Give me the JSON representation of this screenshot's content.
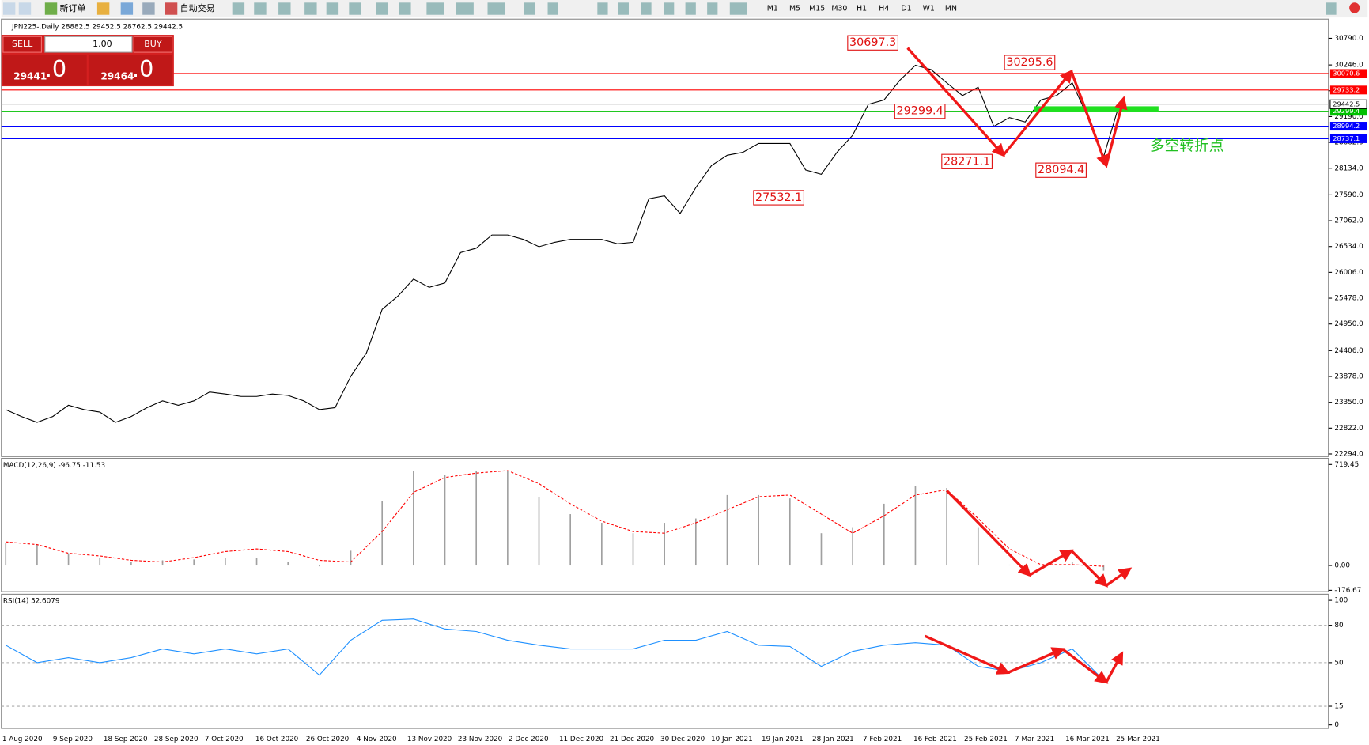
{
  "toolbar": {
    "new_order": "新订单",
    "auto_trading": "自动交易",
    "timeframes": [
      "M1",
      "M5",
      "M15",
      "M30",
      "H1",
      "H4",
      "D1",
      "W1",
      "MN"
    ]
  },
  "trade_panel": {
    "sell": "SELL",
    "buy": "BUY",
    "volume": "1.00",
    "sell_price": "29441",
    "sell_price_big": ".0",
    "buy_price": "29464",
    "buy_price_big": ".0"
  },
  "xtick_labels": [
    "1 Aug 2020",
    "9 Sep 2020",
    "18 Sep 2020",
    "28 Sep 2020",
    "7 Oct 2020",
    "16 Oct 2020",
    "26 Oct 2020",
    "4 Nov 2020",
    "13 Nov 2020",
    "23 Nov 2020",
    "2 Dec 2020",
    "11 Dec 2020",
    "21 Dec 2020",
    "30 Dec 2020",
    "10 Jan 2021",
    "19 Jan 2021",
    "28 Jan 2021",
    "7 Feb 2021",
    "16 Feb 2021",
    "25 Feb 2021",
    "7 Mar 2021",
    "16 Mar 2021",
    "25 Mar 2021"
  ],
  "chart_data": [
    {
      "type": "line",
      "title": "JPN225-,Daily  28882.5 29452.5 28762.5 29442.5",
      "color": "#000000",
      "values": [
        23200,
        23060,
        22940,
        23060,
        23290,
        23200,
        23150,
        22940,
        23060,
        23240,
        23380,
        23290,
        23380,
        23560,
        23520,
        23470,
        23470,
        23520,
        23490,
        23380,
        23200,
        23240,
        23880,
        24360,
        25250,
        25520,
        25870,
        25700,
        25790,
        26410,
        26500,
        26770,
        26770,
        26680,
        26530,
        26620,
        26680,
        26680,
        26680,
        26590,
        26620,
        27510,
        27570,
        27210,
        27740,
        28190,
        28400,
        28460,
        28640,
        28640,
        28640,
        28100,
        28010,
        28460,
        28810,
        29440,
        29530,
        29930,
        30240,
        30150,
        29880,
        29620,
        29790,
        28990,
        29170,
        29080,
        29530,
        29620,
        29880,
        29170,
        28370,
        29440
      ],
      "ylim": [
        22258,
        31146
      ],
      "yticks": [
        {
          "value": 30790,
          "label": "30790.0"
        },
        {
          "value": 30246,
          "label": "30246.0"
        },
        {
          "value": 29718,
          "label": "29718.0"
        },
        {
          "value": 29190,
          "label": "29190.0"
        },
        {
          "value": 28662,
          "label": "28662.0"
        },
        {
          "value": 28134,
          "label": "28134.0"
        },
        {
          "value": 27590,
          "label": "27590.0"
        },
        {
          "value": 27062,
          "label": "27062.0"
        },
        {
          "value": 26534,
          "label": "26534.0"
        },
        {
          "value": 26006,
          "label": "26006.0"
        },
        {
          "value": 25478,
          "label": "25478.0"
        },
        {
          "value": 24950,
          "label": "24950.0"
        },
        {
          "value": 24406,
          "label": "24406.0"
        },
        {
          "value": 23878,
          "label": "23878.0"
        },
        {
          "value": 23350,
          "label": "23350.0"
        },
        {
          "value": 22822,
          "label": "22822.0"
        },
        {
          "value": 22294,
          "label": "22294.0"
        }
      ],
      "levels": [
        {
          "value": 30070.6,
          "color": "#ff0000"
        },
        {
          "value": 29733.2,
          "color": "#ff0000"
        },
        {
          "value": 29299.4,
          "color": "#00c000"
        },
        {
          "value": 28994.2,
          "color": "#0000ff"
        },
        {
          "value": 28737.1,
          "color": "#0000ff"
        }
      ],
      "bid": 29442.5,
      "annotations": [
        {
          "value": 30697.3,
          "index": 57
        },
        {
          "value": 30295.6,
          "index": 67
        },
        {
          "value": 29299.4,
          "index": 60
        },
        {
          "value": 28271.1,
          "index": 63
        },
        {
          "value": 28094.4,
          "index": 69
        },
        {
          "value": 27532.1,
          "index": 51
        }
      ],
      "note": "多空转折点"
    },
    {
      "type": "bar",
      "title": "MACD(12,26,9) -96.75 -11.53",
      "ylim": [
        -180,
        757
      ],
      "yticks": [
        719.45,
        {
          "value": 0,
          "label": "0.00"
        },
        -176.67
      ],
      "series": [
        {
          "color": "#a0a0a0",
          "values": [
            161,
            149,
            87,
            56,
            25,
            37,
            43,
            56,
            56,
            25,
            -6,
            105,
            459,
            676,
            645,
            676,
            676,
            490,
            366,
            304,
            230,
            304,
            335,
            502,
            502,
            478,
            230,
            273,
            440,
            565,
            552,
            273,
            6,
            6,
            25,
            -37
          ]
        },
        {
          "color": "#ff0000",
          "dashed": true,
          "values": [
            168,
            149,
            87,
            68,
            37,
            25,
            56,
            99,
            118,
            99,
            37,
            25,
            242,
            521,
            627,
            658,
            676,
            583,
            440,
            316,
            242,
            230,
            304,
            397,
            490,
            502,
            366,
            230,
            354,
            502,
            540,
            335,
            118,
            6,
            6,
            -6
          ]
        }
      ]
    },
    {
      "type": "line",
      "title": "RSI(14) 52.6079",
      "color": "#1e90ff",
      "ylim": [
        0,
        100
      ],
      "yticks": [
        100,
        80,
        50,
        15,
        0
      ],
      "grid": [
        80,
        50,
        15
      ],
      "values": [
        64,
        50,
        54,
        50,
        54,
        61,
        57,
        61,
        57,
        61,
        40,
        68,
        84,
        85,
        77,
        75,
        68,
        64,
        61,
        61,
        61,
        68,
        68,
        75,
        64,
        63,
        47,
        59,
        64,
        66,
        64,
        47,
        43,
        50,
        61,
        36
      ]
    }
  ]
}
